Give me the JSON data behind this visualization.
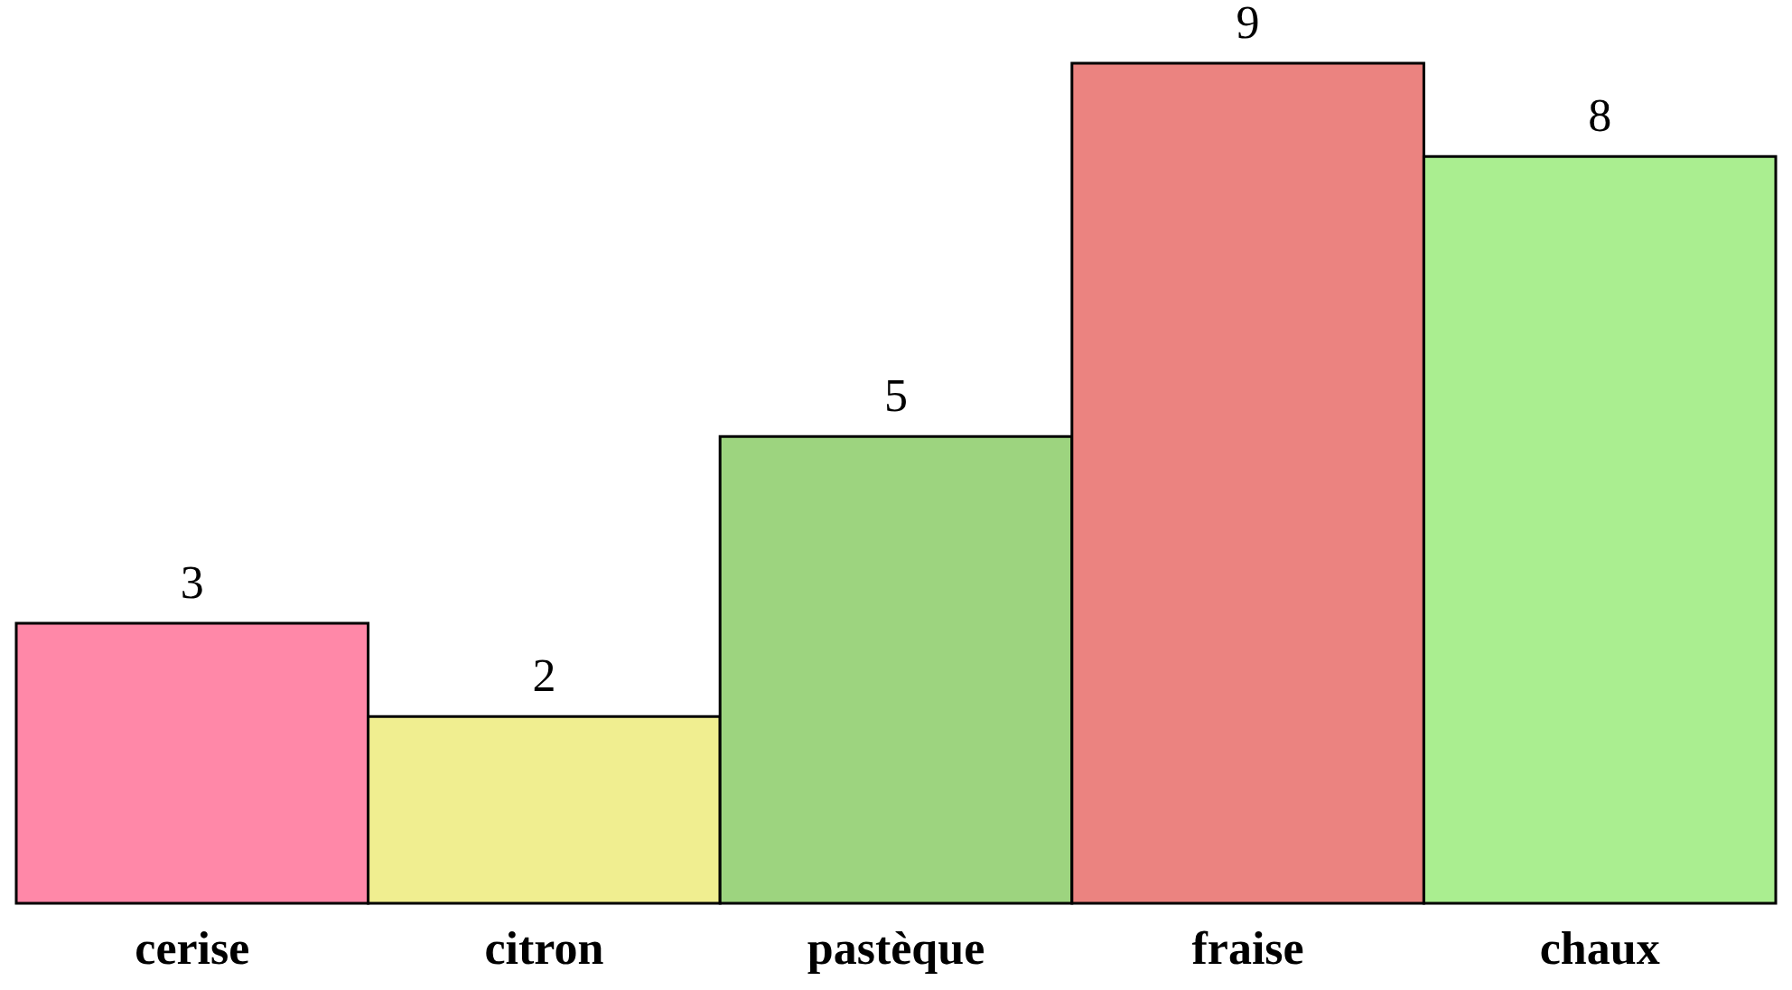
{
  "chart_data": {
    "type": "bar",
    "categories": [
      "cerise",
      "citron",
      "pastèque",
      "fraise",
      "chaux"
    ],
    "values": [
      3,
      2,
      5,
      9,
      8
    ],
    "colors": [
      "#ff88a8",
      "#f0ee90",
      "#9dd47f",
      "#eb8380",
      "#aaee90"
    ],
    "data_labels": true,
    "grid": false
  }
}
